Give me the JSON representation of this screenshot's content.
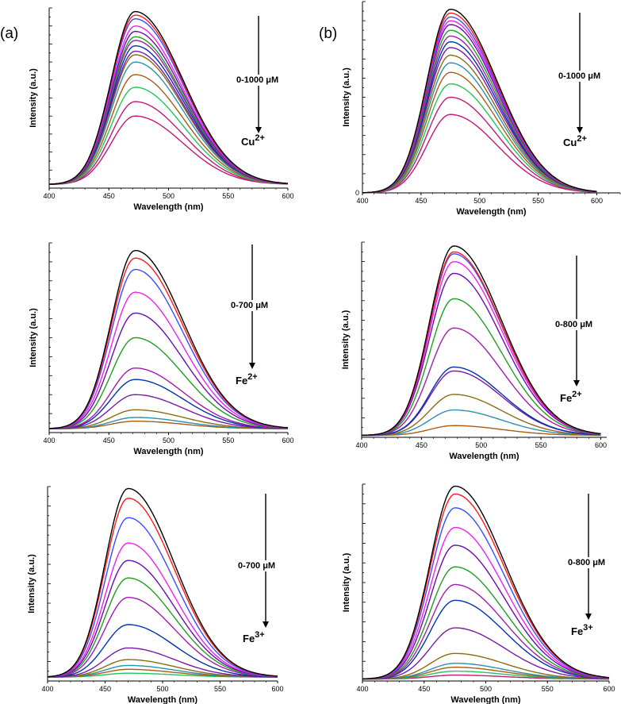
{
  "figure": {
    "panel_labels": [
      "(a)",
      "(b)"
    ]
  },
  "colors": [
    "#c2187a",
    "#22c55e",
    "#a85c10",
    "#2b8fb0",
    "#8b6b10",
    "#7a1aa8",
    "#0033aa",
    "#a21caf",
    "#1f9e1f",
    "#6a0dad",
    "#ee22ee",
    "#3b4cff",
    "#ff1a1a",
    "#000000"
  ],
  "chart_data": [
    {
      "id": "a1",
      "type": "line",
      "ion_base": "Cu",
      "ion_charge": "2+",
      "conc_range": "0-1000 μM",
      "xlabel": "Wavelength (nm)",
      "ylabel": "Intensity (a.u.)",
      "xlim": [
        400,
        600
      ],
      "ylim": [
        0,
        100
      ],
      "xticks": [
        "400",
        "450",
        "500",
        "550",
        "600"
      ],
      "yticks": [],
      "peak_x": 472,
      "baseline": 2,
      "peaks": [
        40,
        48,
        56,
        63,
        70,
        74,
        76,
        79,
        82,
        84,
        87,
        90,
        94,
        96,
        98
      ]
    },
    {
      "id": "b1",
      "type": "line",
      "ion_base": "Cu",
      "ion_charge": "2+",
      "conc_range": "0-1000 μM",
      "xlabel": "Wavelength (nm)",
      "ylabel": "Intensity (a.u.)",
      "xlim": [
        400,
        620
      ],
      "ylim": [
        0,
        100
      ],
      "xticks": [
        "400",
        "450",
        "500",
        "550",
        "600"
      ],
      "yticks": [
        "0"
      ],
      "peak_x": 475,
      "baseline": 0,
      "peaks": [
        41,
        50,
        57,
        63,
        68,
        72,
        76,
        79,
        82,
        85,
        88,
        90,
        92,
        94,
        96
      ]
    },
    {
      "id": "a2",
      "type": "line",
      "ion_base": "Fe",
      "ion_charge": "2+",
      "conc_range": "0-700 μM",
      "xlabel": "Wavelength (nm)",
      "ylabel": "Intensity (a.u.)",
      "xlim": [
        400,
        600
      ],
      "ylim": [
        0,
        100
      ],
      "xticks": [
        "400",
        "450",
        "500",
        "550",
        "600"
      ],
      "yticks": [],
      "peak_x": 472,
      "baseline": 2,
      "peaks": [
        6,
        8,
        12,
        20,
        28,
        34,
        50,
        63,
        74,
        86,
        92,
        96
      ]
    },
    {
      "id": "b2",
      "type": "line",
      "ion_base": "Fe",
      "ion_charge": "2+",
      "conc_range": "0-800 μM",
      "xlabel": "Wavelength (nm)",
      "ylabel": "Intensity (a.u.)",
      "xlim": [
        400,
        605
      ],
      "ylim": [
        0,
        100
      ],
      "xticks": [
        "400",
        "450",
        "500",
        "550",
        "600"
      ],
      "yticks": [],
      "peak_x": 477,
      "baseline": 1,
      "peaks": [
        6,
        14,
        22,
        34,
        36,
        56,
        71,
        84,
        90,
        94,
        95,
        98
      ]
    },
    {
      "id": "a3",
      "type": "line",
      "ion_base": "Fe",
      "ion_charge": "3+",
      "conc_range": "0-700 μM",
      "xlabel": "Wavelength (nm)",
      "ylabel": "Intensity (a.u.)",
      "xlim": [
        400,
        600
      ],
      "ylim": [
        0,
        100
      ],
      "xticks": [
        "400",
        "450",
        "500",
        "550",
        "600"
      ],
      "yticks": [],
      "peak_x": 470,
      "baseline": 2,
      "peaks": [
        4,
        6,
        8,
        11,
        17,
        29,
        43,
        53,
        62,
        71,
        84,
        94,
        99
      ]
    },
    {
      "id": "b3",
      "type": "line",
      "ion_base": "Fe",
      "ion_charge": "3+",
      "conc_range": "0-800 μM",
      "xlabel": "Wavelength (nm)",
      "ylabel": "Intensity (a.u.)",
      "xlim": [
        400,
        600
      ],
      "ylim": [
        0,
        100
      ],
      "xticks": [
        "400",
        "450",
        "500",
        "550",
        "600"
      ],
      "yticks": [],
      "peak_x": 475,
      "baseline": 1,
      "peaks": [
        3,
        5,
        7,
        9,
        14,
        27,
        41,
        49,
        58,
        69,
        78,
        88,
        95,
        99
      ]
    }
  ]
}
